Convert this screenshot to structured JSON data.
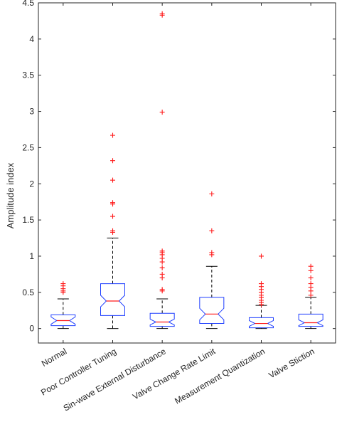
{
  "chart_data": {
    "type": "box",
    "ylabel": "Amplitude index",
    "xlabel": "",
    "ylim": [
      -0.2,
      4.5
    ],
    "yticks": [
      0,
      0.5,
      1,
      1.5,
      2,
      2.5,
      3,
      3.5,
      4,
      4.5
    ],
    "ytick_labels": [
      "0",
      "0.5",
      "1",
      "1.5",
      "2",
      "2.5",
      "3",
      "3.5",
      "4",
      "4.5"
    ],
    "grid": false,
    "notched": true,
    "colors": {
      "box": "#1f3fff",
      "median": "#ff1a1a",
      "outlier": "#ff1a1a",
      "whisker": "#000000"
    },
    "categories": [
      "Normal",
      "Poor Controller Tuning",
      "Sin-wave External Disturbance",
      "Valve Change Rate Limit",
      "Measurement Quantization",
      "Valve Stiction"
    ],
    "boxes": [
      {
        "whisker_low": 0.0,
        "q1": 0.04,
        "median": 0.11,
        "q3": 0.19,
        "whisker_high": 0.41,
        "notch_low": 0.06,
        "notch_high": 0.16,
        "outliers": [
          0.5,
          0.52,
          0.55,
          0.59,
          0.62
        ]
      },
      {
        "whisker_low": 0.0,
        "q1": 0.18,
        "median": 0.38,
        "q3": 0.62,
        "whisker_high": 1.25,
        "notch_low": 0.3,
        "notch_high": 0.46,
        "outliers": [
          1.33,
          1.35,
          1.55,
          1.72,
          1.74,
          2.05,
          2.32,
          2.67
        ]
      },
      {
        "whisker_low": 0.0,
        "q1": 0.03,
        "median": 0.09,
        "q3": 0.21,
        "whisker_high": 0.41,
        "notch_low": 0.05,
        "notch_high": 0.13,
        "outliers": [
          0.52,
          0.54,
          0.7,
          0.75,
          0.84,
          0.92,
          0.97,
          1.02,
          1.05,
          1.07,
          2.99,
          4.33,
          4.35
        ]
      },
      {
        "whisker_low": 0.0,
        "q1": 0.07,
        "median": 0.2,
        "q3": 0.43,
        "whisker_high": 0.86,
        "notch_low": 0.12,
        "notch_high": 0.28,
        "outliers": [
          1.02,
          1.05,
          1.35,
          1.86
        ]
      },
      {
        "whisker_low": 0.0,
        "q1": 0.01,
        "median": 0.07,
        "q3": 0.15,
        "whisker_high": 0.32,
        "notch_low": 0.03,
        "notch_high": 0.11,
        "outliers": [
          0.33,
          0.36,
          0.39,
          0.43,
          0.46,
          0.5,
          0.54,
          0.58,
          0.62,
          1.0
        ]
      },
      {
        "whisker_low": 0.0,
        "q1": 0.03,
        "median": 0.08,
        "q3": 0.2,
        "whisker_high": 0.43,
        "notch_low": 0.04,
        "notch_high": 0.12,
        "outliers": [
          0.46,
          0.52,
          0.57,
          0.62,
          0.7,
          0.8,
          0.86
        ]
      }
    ]
  }
}
